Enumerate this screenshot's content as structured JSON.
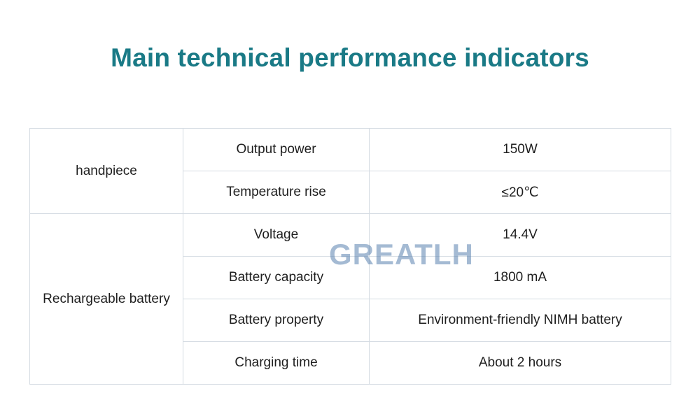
{
  "title": "Main technical performance indicators",
  "watermark": "GREATLH",
  "table": {
    "groups": [
      {
        "name": "handpiece",
        "rows": [
          {
            "parameter": "Output power",
            "value": "150W"
          },
          {
            "parameter": "Temperature rise",
            "value": "≤20℃"
          }
        ]
      },
      {
        "name": "Rechargeable battery",
        "rows": [
          {
            "parameter": "Voltage",
            "value": "14.4V"
          },
          {
            "parameter": "Battery capacity",
            "value": "1800 mA"
          },
          {
            "parameter": "Battery property",
            "value": "Environment-friendly NIMH battery"
          },
          {
            "parameter": "Charging time",
            "value": "About 2 hours"
          }
        ]
      }
    ]
  },
  "colors": {
    "title": "#1a7a86",
    "border": "#d4dbe2",
    "text": "#1e1e1e"
  }
}
